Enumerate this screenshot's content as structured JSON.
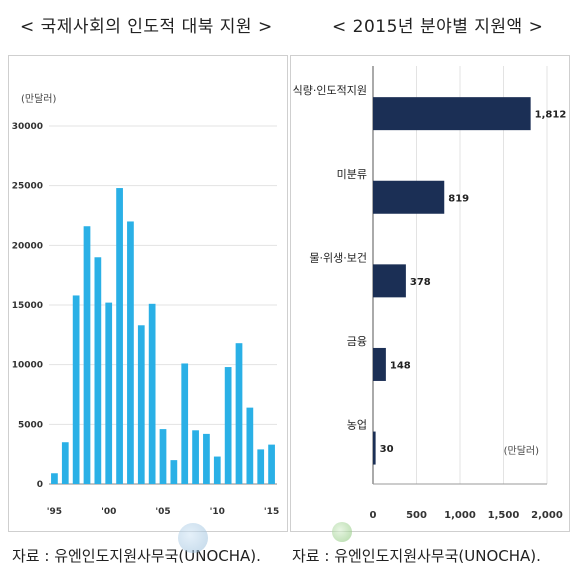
{
  "titles": {
    "left": "< 국제사회의 인도적 대북 지원 >",
    "right": "< 2015년 분야별 지원액 >"
  },
  "sources": {
    "left": "자료 : 유엔인도지원사무국(UNOCHA).",
    "right": "자료 : 유엔인도지원사무국(UNOCHA)."
  },
  "colors": {
    "left_bars": "#2ab0e6",
    "right_bars": "#1b2f55",
    "grid": "#e3e3e3"
  },
  "chart_data": [
    {
      "type": "bar",
      "orientation": "vertical",
      "unit": "(만달러)",
      "categories": [
        "'95",
        "'96",
        "'97",
        "'98",
        "'99",
        "'00",
        "'01",
        "'02",
        "'03",
        "'04",
        "'05",
        "'06",
        "'07",
        "'08",
        "'09",
        "'10",
        "'11",
        "'12",
        "'13",
        "'14",
        "'15"
      ],
      "values": [
        900,
        3500,
        15800,
        21600,
        19000,
        15200,
        24800,
        22000,
        13300,
        15100,
        4600,
        2000,
        10100,
        4500,
        4200,
        2300,
        9800,
        11800,
        6400,
        2900,
        3300
      ],
      "tick_labels": [
        "'95",
        "'00",
        "'05",
        "'10",
        "'15"
      ],
      "ylim": [
        0,
        30000
      ],
      "yticks": [
        0,
        5000,
        10000,
        15000,
        20000,
        25000,
        30000
      ],
      "ytick_labels": [
        "0",
        "5000",
        "10000",
        "15000",
        "20000",
        "25000",
        "30000"
      ],
      "grid": true
    },
    {
      "type": "bar",
      "orientation": "horizontal",
      "unit": "(만달러)",
      "categories": [
        "식량·인도적지원",
        "미분류",
        "물·위생·보건",
        "금융",
        "농업"
      ],
      "values": [
        1812,
        819,
        378,
        148,
        30
      ],
      "value_labels": [
        "1,812",
        "819",
        "378",
        "148",
        "30"
      ],
      "xlim": [
        0,
        2000
      ],
      "xticks": [
        0,
        500,
        1000,
        1500,
        2000
      ],
      "xtick_labels": [
        "0",
        "500",
        "1,000",
        "1,500",
        "2,000"
      ]
    }
  ]
}
